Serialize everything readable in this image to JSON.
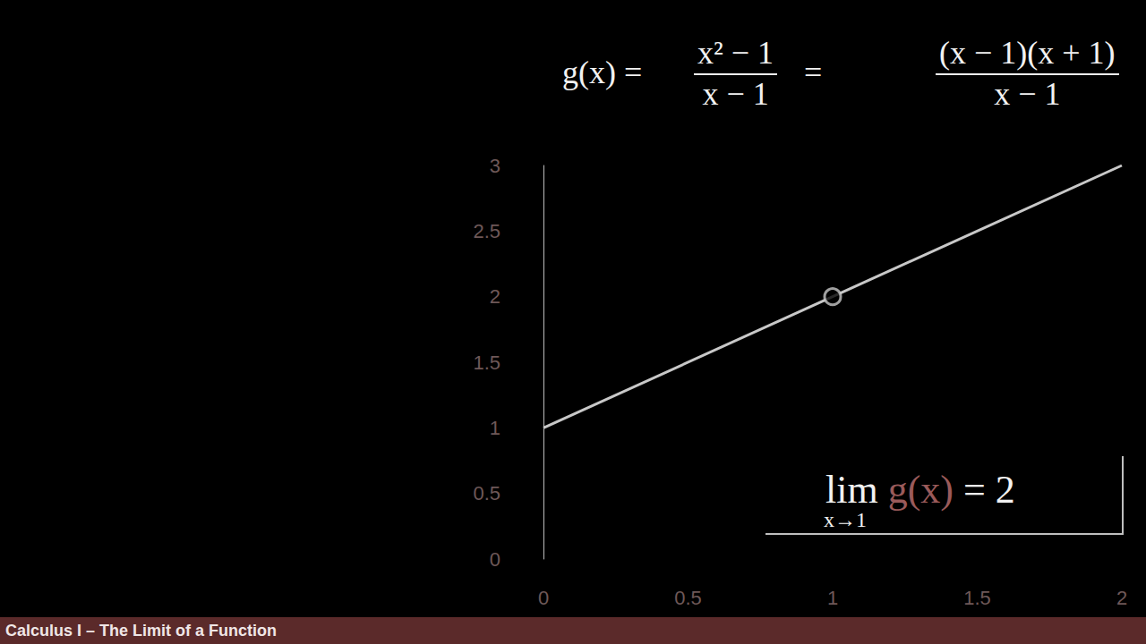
{
  "chart_data": {
    "type": "line",
    "formula": {
      "lhs": "g(x) =",
      "fraction1": {
        "numerator": "x² − 1",
        "denominator": "x − 1"
      },
      "equals": "=",
      "fraction2": {
        "numerator": "(x − 1)(x + 1)",
        "denominator": "x − 1"
      }
    },
    "annotation": {
      "lim": "lim",
      "subscript": "x→1",
      "function": "g(x)",
      "result": "= 2"
    },
    "footer": "Calculus I – The Limit of a Function",
    "x": [
      0,
      1,
      2
    ],
    "values": [
      1,
      2,
      3
    ],
    "open_points": [
      {
        "x": 1,
        "y": 2
      }
    ],
    "color": "#c8c8c8",
    "line_style": "solid",
    "xlim": [
      0,
      2
    ],
    "xticks": [
      0,
      0.5,
      1,
      1.5,
      2
    ],
    "ylim": [
      0,
      3
    ],
    "yticks": [
      0,
      0.5,
      1,
      1.5,
      2,
      2.5,
      3
    ],
    "grid": false
  }
}
